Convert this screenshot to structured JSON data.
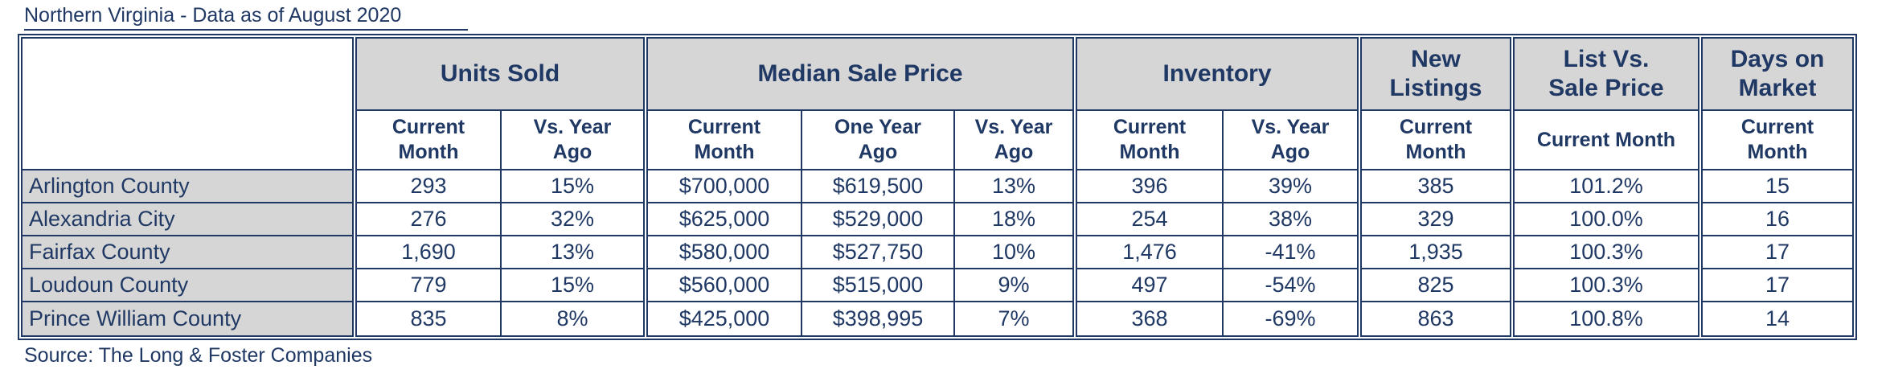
{
  "page": {
    "title": "Northern Virginia - Data as of August 2020",
    "source": "Source: The Long & Foster Companies"
  },
  "colors": {
    "navy": "#1f3864",
    "header_gray": "#d6d6d6",
    "background": "#ffffff"
  },
  "table": {
    "groups": [
      {
        "id": "area",
        "title_lines": [],
        "subheaders": []
      },
      {
        "id": "units-sold",
        "title_lines": [
          "Units Sold"
        ],
        "subheaders": [
          [
            "Current",
            "Month"
          ],
          [
            "Vs. Year",
            "Ago"
          ]
        ]
      },
      {
        "id": "median-sale-price",
        "title_lines": [
          "Median Sale Price"
        ],
        "subheaders": [
          [
            "Current",
            "Month"
          ],
          [
            "One Year",
            "Ago"
          ],
          [
            "Vs. Year",
            "Ago"
          ]
        ]
      },
      {
        "id": "inventory",
        "title_lines": [
          "Inventory"
        ],
        "subheaders": [
          [
            "Current",
            "Month"
          ],
          [
            "Vs. Year",
            "Ago"
          ]
        ]
      },
      {
        "id": "new-listings",
        "title_lines": [
          "New",
          "Listings"
        ],
        "subheaders": [
          [
            "Current",
            "Month"
          ]
        ]
      },
      {
        "id": "list-vs-sale-price",
        "title_lines": [
          "List Vs.",
          "Sale Price"
        ],
        "subheaders": [
          [
            "Current Month"
          ]
        ]
      },
      {
        "id": "days-on-market",
        "title_lines": [
          "Days on",
          "Market"
        ],
        "subheaders": [
          [
            "Current",
            "Month"
          ]
        ]
      }
    ],
    "rows": [
      {
        "label": "Arlington County",
        "values": [
          "293",
          "15%",
          "$700,000",
          "$619,500",
          "13%",
          "396",
          "39%",
          "385",
          "101.2%",
          "15"
        ]
      },
      {
        "label": "Alexandria City",
        "values": [
          "276",
          "32%",
          "$625,000",
          "$529,000",
          "18%",
          "254",
          "38%",
          "329",
          "100.0%",
          "16"
        ]
      },
      {
        "label": "Fairfax County",
        "values": [
          "1,690",
          "13%",
          "$580,000",
          "$527,750",
          "10%",
          "1,476",
          "-41%",
          "1,935",
          "100.3%",
          "17"
        ]
      },
      {
        "label": "Loudoun County",
        "values": [
          "779",
          "15%",
          "$560,000",
          "$515,000",
          "9%",
          "497",
          "-54%",
          "825",
          "100.3%",
          "17"
        ]
      },
      {
        "label": "Prince William County",
        "values": [
          "835",
          "8%",
          "$425,000",
          "$398,995",
          "7%",
          "368",
          "-69%",
          "863",
          "100.8%",
          "14"
        ]
      }
    ]
  },
  "chart_data": {
    "type": "table",
    "title": "Northern Virginia - Data as of August 2020",
    "column_groups": [
      "",
      "Units Sold",
      "Median Sale Price",
      "Inventory",
      "New Listings",
      "List Vs. Sale Price",
      "Days on Market"
    ],
    "columns": [
      "Area",
      "Units Sold Current Month",
      "Units Sold Vs. Year Ago",
      "Median Sale Price Current Month",
      "Median Sale Price One Year Ago",
      "Median Sale Price Vs. Year Ago",
      "Inventory Current Month",
      "Inventory Vs. Year Ago",
      "New Listings Current Month",
      "List Vs. Sale Price Current Month",
      "Days on Market Current Month"
    ],
    "rows": [
      [
        "Arlington County",
        "293",
        "15%",
        "$700,000",
        "$619,500",
        "13%",
        "396",
        "39%",
        "385",
        "101.2%",
        "15"
      ],
      [
        "Alexandria City",
        "276",
        "32%",
        "$625,000",
        "$529,000",
        "18%",
        "254",
        "38%",
        "329",
        "100.0%",
        "16"
      ],
      [
        "Fairfax County",
        "1,690",
        "13%",
        "$580,000",
        "$527,750",
        "10%",
        "1,476",
        "-41%",
        "1,935",
        "100.3%",
        "17"
      ],
      [
        "Loudoun County",
        "779",
        "15%",
        "$560,000",
        "$515,000",
        "9%",
        "497",
        "-54%",
        "825",
        "100.3%",
        "17"
      ],
      [
        "Prince William County",
        "835",
        "8%",
        "$425,000",
        "$398,995",
        "7%",
        "368",
        "-69%",
        "863",
        "100.8%",
        "14"
      ]
    ],
    "source": "Source: The Long & Foster Companies"
  }
}
